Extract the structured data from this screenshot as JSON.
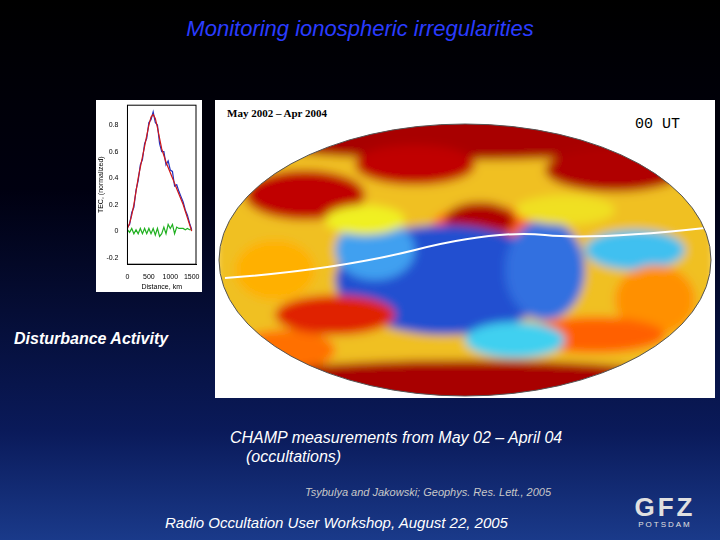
{
  "slide": {
    "title": "Monitoring ionospheric irregularities",
    "left_label": "Disturbance Activity",
    "map": {
      "period": "May 2002 – Apr 2004",
      "time": "00 UT"
    },
    "caption_lines": [
      "CHAMP measurements from May 02 – April 04",
      "(occultations)"
    ],
    "citation": "Tsybulya and Jakowski; Geophys. Res. Lett., 2005",
    "footer": "Radio Occultation User Workshop, August 22, 2005",
    "logo": {
      "name": "GFZ",
      "place": "POTSDAM"
    }
  },
  "chart_data": {
    "type": "line",
    "x_label": "Distance, km",
    "y_label": "TEC, (normalized)",
    "x": [
      0,
      50,
      100,
      150,
      200,
      250,
      300,
      350,
      400,
      450,
      500,
      550,
      600,
      650,
      700,
      750,
      800,
      850,
      900,
      950,
      1000,
      1050,
      1100,
      1150,
      1200,
      1250,
      1300,
      1350,
      1400,
      1450,
      1500
    ],
    "series": [
      {
        "color": "#d01818",
        "values": [
          0.02,
          0.06,
          0.12,
          0.2,
          0.3,
          0.4,
          0.48,
          0.56,
          0.64,
          0.72,
          0.8,
          0.86,
          0.88,
          0.85,
          0.78,
          0.7,
          0.62,
          0.57,
          0.52,
          0.48,
          0.44,
          0.4,
          0.36,
          0.32,
          0.28,
          0.24,
          0.2,
          0.15,
          0.1,
          0.05,
          0.0
        ]
      },
      {
        "color": "#2030c0",
        "values": [
          0.03,
          0.05,
          0.14,
          0.18,
          0.31,
          0.38,
          0.5,
          0.54,
          0.66,
          0.7,
          0.82,
          0.84,
          0.9,
          0.82,
          0.8,
          0.66,
          0.6,
          0.6,
          0.5,
          0.53,
          0.46,
          0.45,
          0.34,
          0.35,
          0.3,
          0.26,
          0.22,
          0.16,
          0.12,
          0.06,
          0.01
        ]
      },
      {
        "color": "#20b020",
        "values": [
          0.01,
          -0.01,
          0.02,
          -0.02,
          0.01,
          -0.02,
          0.02,
          -0.02,
          0.02,
          -0.02,
          0.02,
          -0.02,
          0.02,
          -0.03,
          0.02,
          -0.04,
          -0.02,
          0.03,
          -0.02,
          0.05,
          0.02,
          0.05,
          -0.02,
          0.03,
          0.02,
          0.02,
          0.02,
          0.01,
          0.02,
          0.01,
          0.01
        ]
      }
    ],
    "xlim": [
      0,
      1600
    ],
    "xticks": [
      0,
      500,
      1000,
      1500
    ],
    "ylim": [
      -0.25,
      0.95
    ],
    "yticks": [
      -0.2,
      0,
      0.2,
      0.4,
      0.6,
      0.8
    ],
    "grid": false
  }
}
